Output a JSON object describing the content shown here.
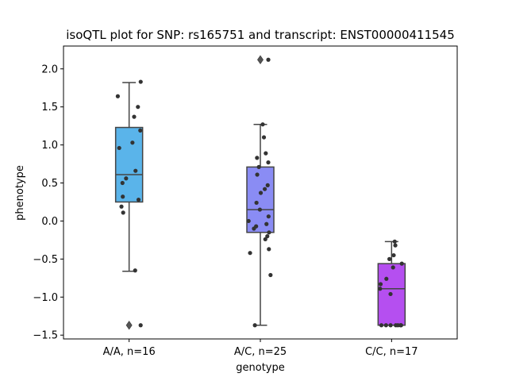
{
  "chart_data": {
    "type": "box",
    "title": "isoQTL plot for SNP: rs165751 and transcript: ENST00000411545",
    "xlabel": "genotype",
    "ylabel": "phenotype",
    "ylim": [
      -1.55,
      2.3
    ],
    "yticks": [
      -1.5,
      -1.0,
      -0.5,
      0.0,
      0.5,
      1.0,
      1.5,
      2.0
    ],
    "ytick_labels": [
      "−1.5",
      "−1.0",
      "−0.5",
      "0.0",
      "0.5",
      "1.0",
      "1.5",
      "2.0"
    ],
    "grid": false,
    "categories": [
      "A/A, n=16",
      "A/C, n=25",
      "C/C, n=17"
    ],
    "colors": [
      "#5ab4ea",
      "#8a8cf4",
      "#b54ff0"
    ],
    "boxes": [
      {
        "q1": 0.25,
        "median": 0.61,
        "q3": 1.23,
        "whisker_low": -0.66,
        "whisker_high": 1.82,
        "outliers": [
          -1.37
        ]
      },
      {
        "q1": -0.15,
        "median": 0.15,
        "q3": 0.71,
        "whisker_low": -1.37,
        "whisker_high": 1.27,
        "outliers": [
          2.12
        ]
      },
      {
        "q1": -1.37,
        "median": -0.89,
        "q3": -0.56,
        "whisker_low": -1.37,
        "whisker_high": -0.27,
        "outliers": []
      }
    ],
    "points": [
      {
        "group": 0,
        "values": [
          1.83,
          1.64,
          1.5,
          1.37,
          1.19,
          1.03,
          0.96,
          0.66,
          0.56,
          0.5,
          0.32,
          0.28,
          0.19,
          0.11,
          -0.65,
          -1.37
        ]
      },
      {
        "group": 1,
        "values": [
          2.12,
          1.27,
          1.1,
          0.89,
          0.83,
          0.77,
          0.71,
          0.61,
          0.47,
          0.42,
          0.37,
          0.24,
          0.15,
          0.06,
          0.0,
          -0.04,
          -0.07,
          -0.1,
          -0.15,
          -0.2,
          -0.24,
          -0.37,
          -0.42,
          -0.71,
          -1.37
        ]
      },
      {
        "group": 2,
        "values": [
          -0.27,
          -0.32,
          -0.45,
          -0.5,
          -0.56,
          -0.61,
          -0.76,
          -0.83,
          -0.89,
          -0.96,
          -1.37,
          -1.37,
          -1.37,
          -1.37,
          -1.37,
          -1.37,
          -1.37
        ]
      }
    ]
  }
}
